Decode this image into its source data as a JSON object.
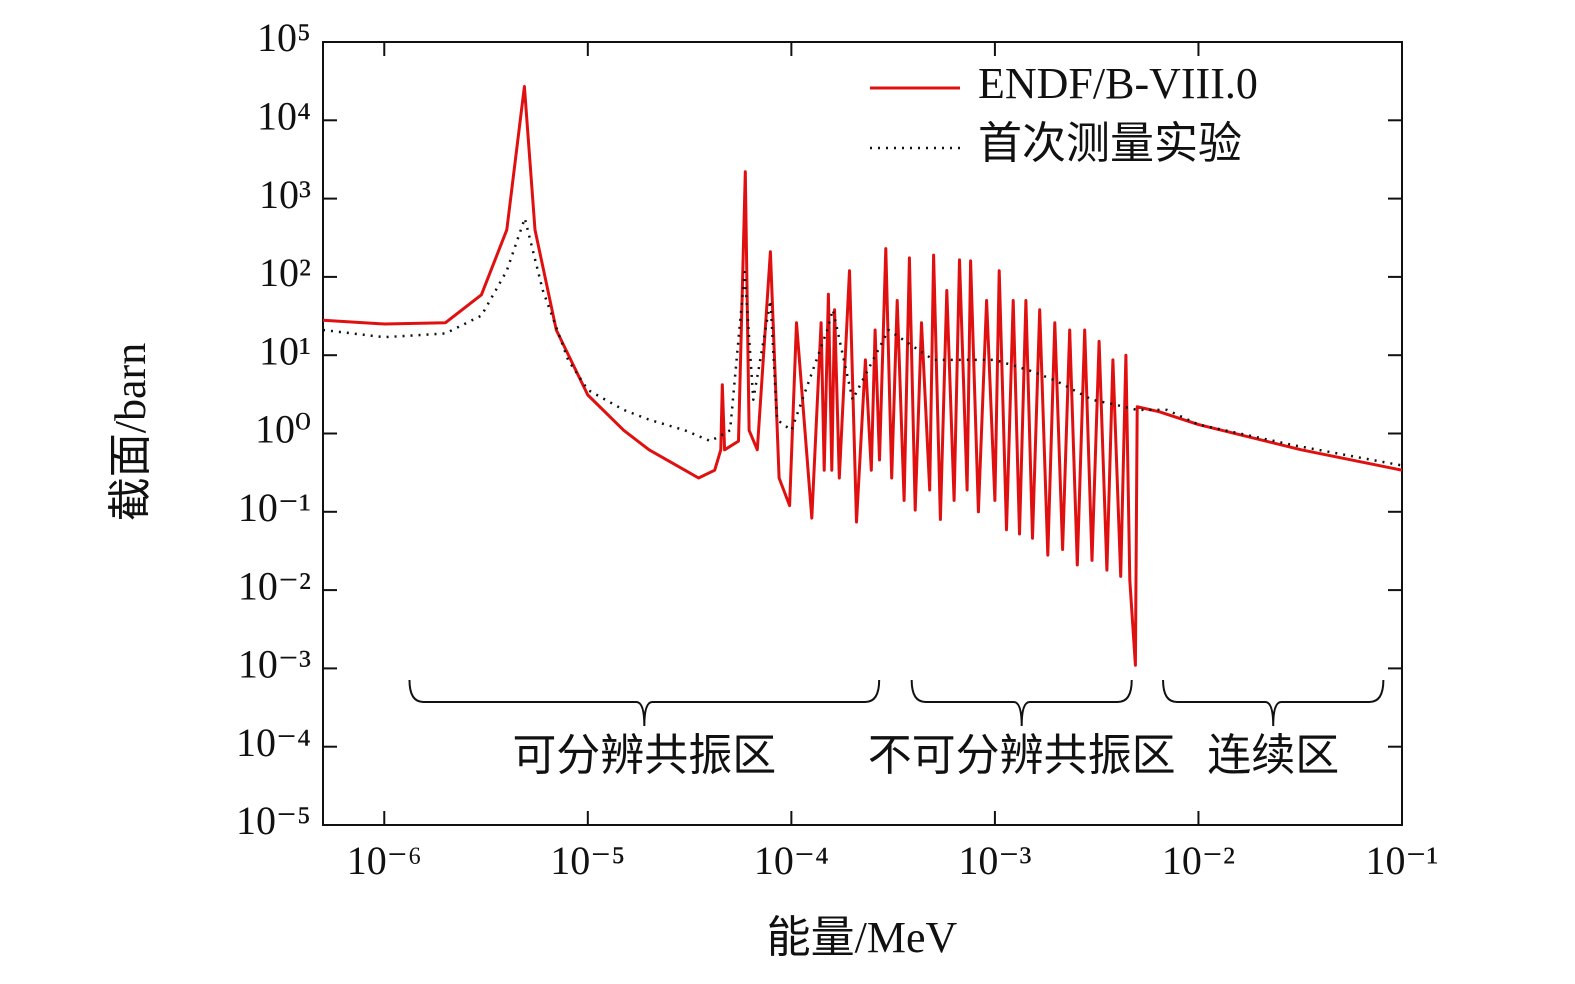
{
  "chart_data": {
    "type": "line",
    "x_label": "能量/MeV",
    "y_label": "截面/barn",
    "xscale": "log",
    "yscale": "log",
    "xlim": [
      5e-07,
      0.1
    ],
    "ylim": [
      1e-05,
      100000
    ],
    "xticks": [
      {
        "value": 1e-06,
        "label": "10⁻⁶"
      },
      {
        "value": 1e-05,
        "label": "10⁻⁵"
      },
      {
        "value": 0.0001,
        "label": "10⁻⁴"
      },
      {
        "value": 0.001,
        "label": "10⁻³"
      },
      {
        "value": 0.01,
        "label": "10⁻²"
      },
      {
        "value": 0.1,
        "label": "10⁻¹"
      }
    ],
    "yticks": [
      {
        "value": 100000,
        "label": "10⁵"
      },
      {
        "value": 10000,
        "label": "10⁴"
      },
      {
        "value": 1000,
        "label": "10³"
      },
      {
        "value": 100,
        "label": "10²"
      },
      {
        "value": 10,
        "label": "10¹"
      },
      {
        "value": 1,
        "label": "10⁰"
      },
      {
        "value": 0.1,
        "label": "10⁻¹"
      },
      {
        "value": 0.01,
        "label": "10⁻²"
      },
      {
        "value": 0.001,
        "label": "10⁻³"
      },
      {
        "value": 0.0001,
        "label": "10⁻⁴"
      },
      {
        "value": 1e-05,
        "label": "10⁻⁵"
      }
    ],
    "legend_position": "upper right",
    "series": [
      {
        "name": "ENDF/B-VIII.0",
        "color": "#e01010",
        "line_style": "solid",
        "x": [
          5e-07,
          1e-06,
          2e-06,
          3e-06,
          4e-06,
          4.88e-06,
          5.5e-06,
          7e-06,
          1e-05,
          1.5e-05,
          2e-05,
          3e-05,
          3.5e-05,
          4.2e-05,
          4.5e-05,
          4.58e-05,
          4.7e-05,
          5.5e-05,
          5.94e-05,
          6.2e-05,
          6.8e-05,
          7.89e-05,
          8.7e-05,
          9.8e-05,
          0.000106,
          0.000126,
          0.00014,
          0.000145,
          0.000152,
          0.000158,
          0.000163,
          0.000172,
          0.000193,
          0.000209,
          0.000231,
          0.000247,
          0.000258,
          0.000271,
          0.000291,
          0.000311,
          0.000331,
          0.000358,
          0.00038,
          0.000406,
          0.000436,
          0.000478,
          0.0005,
          0.00054,
          0.00058,
          0.00063,
          0.00067,
          0.00073,
          0.00076,
          0.00083,
          0.00091,
          0.001,
          0.00105,
          0.00114,
          0.00123,
          0.00132,
          0.00142,
          0.00153,
          0.00166,
          0.00182,
          0.00197,
          0.00215,
          0.00233,
          0.00254,
          0.00276,
          0.003,
          0.00325,
          0.00355,
          0.0038,
          0.00415,
          0.0044,
          0.0046,
          0.0049,
          0.005,
          0.0064,
          0.01,
          0.032,
          0.1
        ],
        "values": [
          28,
          25,
          26,
          59,
          400,
          27000,
          400,
          21,
          3.1,
          1.1,
          0.62,
          0.34,
          0.27,
          0.34,
          0.62,
          4.2,
          0.62,
          0.8,
          2200,
          1.1,
          0.62,
          210,
          0.27,
          0.12,
          26,
          0.083,
          26,
          0.34,
          60,
          0.34,
          38,
          0.27,
          120,
          0.074,
          8.7,
          0.34,
          21,
          0.46,
          230,
          0.27,
          50,
          0.14,
          175,
          0.105,
          26,
          0.19,
          190,
          0.08,
          67,
          0.14,
          165,
          0.19,
          160,
          0.1,
          50,
          0.14,
          120,
          0.059,
          50,
          0.052,
          50,
          0.046,
          38,
          0.028,
          26,
          0.033,
          21,
          0.021,
          21,
          0.024,
          15,
          0.018,
          8.7,
          0.015,
          10,
          0.0134,
          0.0011,
          2.2,
          1.9,
          1.3,
          0.62,
          0.34
        ]
      },
      {
        "name": "首次测量实验",
        "color": "#111111",
        "line_style": "dotted",
        "x": [
          5e-07,
          1e-06,
          2e-06,
          3e-06,
          4e-06,
          4.9e-06,
          6e-06,
          8e-06,
          1e-05,
          1.5e-05,
          2e-05,
          3e-05,
          4e-05,
          5e-05,
          5.9e-05,
          6.5e-05,
          7.9e-05,
          8.5e-05,
          0.0001,
          0.00015,
          0.00016,
          0.0002,
          0.0003,
          0.0005,
          0.001,
          0.0015,
          0.002,
          0.003,
          0.004,
          0.005,
          0.007,
          0.01,
          0.03,
          0.1
        ],
        "values": [
          21,
          17,
          19,
          32,
          120,
          560,
          68,
          8.7,
          3.6,
          2.0,
          1.5,
          1.1,
          0.8,
          1.1,
          115,
          2.7,
          50,
          1.5,
          1.1,
          21,
          38,
          2.7,
          21,
          8.7,
          8.7,
          6.3,
          4.7,
          2.7,
          2.3,
          2.0,
          2.0,
          1.3,
          0.7,
          0.39
        ]
      }
    ],
    "annotations": [
      {
        "text": "可分辨共振区",
        "x": [
          1.33e-06,
          0.00027
        ]
      },
      {
        "text": "不可分辨共振区",
        "x": [
          0.00039,
          0.0047
        ]
      },
      {
        "text": "连续区",
        "x": [
          0.0067,
          0.081
        ]
      }
    ]
  }
}
